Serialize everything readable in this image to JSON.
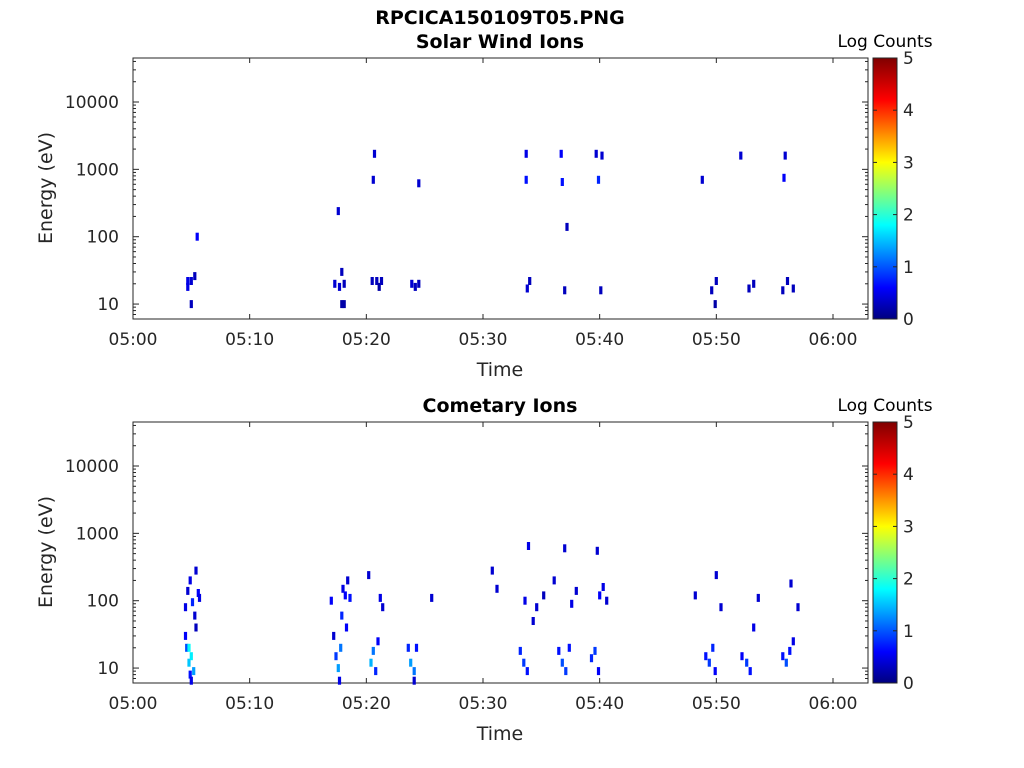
{
  "figure_title": "RPCICA150109T05.PNG",
  "chart_data": [
    {
      "type": "heatmap",
      "title": "Solar Wind Ions",
      "xlabel": "Time",
      "ylabel": "Energy (eV)",
      "xticks": [
        "05:00",
        "05:10",
        "05:20",
        "05:30",
        "05:40",
        "05:50",
        "06:00"
      ],
      "xlim_minutes": [
        0,
        63
      ],
      "yscale": "log",
      "yticks": [
        {
          "value": 10,
          "label": "10"
        },
        {
          "value": 100,
          "label": "100"
        },
        {
          "value": 1000,
          "label": "1000"
        },
        {
          "value": 10000,
          "label": "10000"
        }
      ],
      "ylim": [
        6,
        45000
      ],
      "colorbar": {
        "label": "Log Counts",
        "range": [
          0,
          5
        ],
        "ticks": [
          "0",
          "1",
          "2",
          "3",
          "4",
          "5"
        ],
        "colormap": "jet"
      },
      "cells": [
        {
          "t": 4.7,
          "e": 22,
          "v": 0.5
        },
        {
          "t": 4.7,
          "e": 18,
          "v": 0.5
        },
        {
          "t": 5.0,
          "e": 22,
          "v": 0.4
        },
        {
          "t": 5.0,
          "e": 10,
          "v": 0.3
        },
        {
          "t": 5.3,
          "e": 26,
          "v": 0.3
        },
        {
          "t": 5.5,
          "e": 100,
          "v": 0.6
        },
        {
          "t": 17.3,
          "e": 20,
          "v": 0.4
        },
        {
          "t": 17.6,
          "e": 240,
          "v": 0.4
        },
        {
          "t": 17.7,
          "e": 18,
          "v": 0.4
        },
        {
          "t": 17.9,
          "e": 30,
          "v": 0.3
        },
        {
          "t": 17.9,
          "e": 10,
          "v": 0.2
        },
        {
          "t": 18.1,
          "e": 10,
          "v": 0.2
        },
        {
          "t": 18.1,
          "e": 20,
          "v": 0.3
        },
        {
          "t": 20.5,
          "e": 22,
          "v": 0.3
        },
        {
          "t": 20.6,
          "e": 700,
          "v": 0.4
        },
        {
          "t": 20.7,
          "e": 1700,
          "v": 0.4
        },
        {
          "t": 20.9,
          "e": 22,
          "v": 0.3
        },
        {
          "t": 21.1,
          "e": 18,
          "v": 0.2
        },
        {
          "t": 21.3,
          "e": 22,
          "v": 0.3
        },
        {
          "t": 23.9,
          "e": 20,
          "v": 0.4
        },
        {
          "t": 24.2,
          "e": 18,
          "v": 0.3
        },
        {
          "t": 24.5,
          "e": 20,
          "v": 0.3
        },
        {
          "t": 24.5,
          "e": 620,
          "v": 0.4
        },
        {
          "t": 33.7,
          "e": 1700,
          "v": 0.5
        },
        {
          "t": 33.7,
          "e": 700,
          "v": 0.7
        },
        {
          "t": 33.8,
          "e": 17,
          "v": 0.4
        },
        {
          "t": 34.0,
          "e": 22,
          "v": 0.3
        },
        {
          "t": 36.7,
          "e": 1700,
          "v": 0.6
        },
        {
          "t": 36.8,
          "e": 650,
          "v": 0.7
        },
        {
          "t": 37.0,
          "e": 16,
          "v": 0.3
        },
        {
          "t": 37.2,
          "e": 140,
          "v": 0.3
        },
        {
          "t": 39.7,
          "e": 1700,
          "v": 0.4
        },
        {
          "t": 39.9,
          "e": 700,
          "v": 0.8
        },
        {
          "t": 40.1,
          "e": 16,
          "v": 0.3
        },
        {
          "t": 40.2,
          "e": 1600,
          "v": 0.4
        },
        {
          "t": 48.8,
          "e": 700,
          "v": 0.4
        },
        {
          "t": 49.6,
          "e": 16,
          "v": 0.3
        },
        {
          "t": 49.9,
          "e": 10,
          "v": 0.2
        },
        {
          "t": 50.0,
          "e": 22,
          "v": 0.3
        },
        {
          "t": 52.1,
          "e": 1600,
          "v": 0.4
        },
        {
          "t": 52.8,
          "e": 17,
          "v": 0.3
        },
        {
          "t": 53.2,
          "e": 20,
          "v": 0.3
        },
        {
          "t": 55.7,
          "e": 16,
          "v": 0.3
        },
        {
          "t": 55.8,
          "e": 750,
          "v": 0.6
        },
        {
          "t": 55.9,
          "e": 1600,
          "v": 0.4
        },
        {
          "t": 56.1,
          "e": 22,
          "v": 0.3
        },
        {
          "t": 56.6,
          "e": 17,
          "v": 0.3
        }
      ]
    },
    {
      "type": "heatmap",
      "title": "Cometary Ions",
      "xlabel": "Time",
      "ylabel": "Energy (eV)",
      "xticks": [
        "05:00",
        "05:10",
        "05:20",
        "05:30",
        "05:40",
        "05:50",
        "06:00"
      ],
      "xlim_minutes": [
        0,
        63
      ],
      "yscale": "log",
      "yticks": [
        {
          "value": 10,
          "label": "10"
        },
        {
          "value": 100,
          "label": "100"
        },
        {
          "value": 1000,
          "label": "1000"
        },
        {
          "value": 10000,
          "label": "10000"
        }
      ],
      "ylim": [
        6,
        45000
      ],
      "colorbar": {
        "label": "Log Counts",
        "range": [
          0,
          5
        ],
        "ticks": [
          "0",
          "1",
          "2",
          "3",
          "4",
          "5"
        ],
        "colormap": "jet"
      },
      "cells": [
        {
          "t": 4.5,
          "e": 30,
          "v": 0.6
        },
        {
          "t": 4.6,
          "e": 20,
          "v": 1.0
        },
        {
          "t": 4.8,
          "e": 12,
          "v": 1.6
        },
        {
          "t": 4.8,
          "e": 20,
          "v": 1.9
        },
        {
          "t": 5.0,
          "e": 15,
          "v": 1.8
        },
        {
          "t": 5.2,
          "e": 9,
          "v": 1.4
        },
        {
          "t": 4.9,
          "e": 8,
          "v": 0.7
        },
        {
          "t": 5.0,
          "e": 6.5,
          "v": 0.5
        },
        {
          "t": 4.5,
          "e": 80,
          "v": 0.5
        },
        {
          "t": 4.7,
          "e": 140,
          "v": 0.4
        },
        {
          "t": 4.9,
          "e": 200,
          "v": 0.5
        },
        {
          "t": 5.1,
          "e": 95,
          "v": 0.8
        },
        {
          "t": 5.3,
          "e": 60,
          "v": 0.4
        },
        {
          "t": 5.4,
          "e": 280,
          "v": 0.4
        },
        {
          "t": 5.6,
          "e": 130,
          "v": 0.6
        },
        {
          "t": 5.7,
          "e": 110,
          "v": 0.5
        },
        {
          "t": 5.4,
          "e": 40,
          "v": 0.3
        },
        {
          "t": 17.0,
          "e": 100,
          "v": 0.6
        },
        {
          "t": 17.2,
          "e": 30,
          "v": 0.4
        },
        {
          "t": 17.4,
          "e": 15,
          "v": 0.9
        },
        {
          "t": 17.6,
          "e": 10,
          "v": 1.4
        },
        {
          "t": 17.8,
          "e": 20,
          "v": 1.2
        },
        {
          "t": 17.7,
          "e": 6.5,
          "v": 0.5
        },
        {
          "t": 17.9,
          "e": 60,
          "v": 0.8
        },
        {
          "t": 18.0,
          "e": 150,
          "v": 0.5
        },
        {
          "t": 18.2,
          "e": 120,
          "v": 0.6
        },
        {
          "t": 18.4,
          "e": 200,
          "v": 0.4
        },
        {
          "t": 18.6,
          "e": 110,
          "v": 0.7
        },
        {
          "t": 18.3,
          "e": 40,
          "v": 0.6
        },
        {
          "t": 20.2,
          "e": 240,
          "v": 0.4
        },
        {
          "t": 20.4,
          "e": 12,
          "v": 1.5
        },
        {
          "t": 20.6,
          "e": 18,
          "v": 1.2
        },
        {
          "t": 20.8,
          "e": 9,
          "v": 0.8
        },
        {
          "t": 21.0,
          "e": 25,
          "v": 0.6
        },
        {
          "t": 21.2,
          "e": 110,
          "v": 0.5
        },
        {
          "t": 21.4,
          "e": 80,
          "v": 0.4
        },
        {
          "t": 23.6,
          "e": 20,
          "v": 0.8
        },
        {
          "t": 23.8,
          "e": 12,
          "v": 1.4
        },
        {
          "t": 24.1,
          "e": 9,
          "v": 1.2
        },
        {
          "t": 24.3,
          "e": 20,
          "v": 0.7
        },
        {
          "t": 24.1,
          "e": 6.5,
          "v": 0.4
        },
        {
          "t": 25.6,
          "e": 110,
          "v": 0.4
        },
        {
          "t": 30.8,
          "e": 280,
          "v": 0.4
        },
        {
          "t": 31.2,
          "e": 150,
          "v": 0.4
        },
        {
          "t": 33.2,
          "e": 18,
          "v": 0.8
        },
        {
          "t": 33.5,
          "e": 12,
          "v": 0.9
        },
        {
          "t": 33.8,
          "e": 9,
          "v": 0.7
        },
        {
          "t": 33.6,
          "e": 100,
          "v": 0.5
        },
        {
          "t": 33.9,
          "e": 650,
          "v": 0.5
        },
        {
          "t": 34.3,
          "e": 50,
          "v": 0.4
        },
        {
          "t": 34.6,
          "e": 80,
          "v": 0.4
        },
        {
          "t": 35.2,
          "e": 120,
          "v": 0.3
        },
        {
          "t": 36.1,
          "e": 200,
          "v": 0.4
        },
        {
          "t": 36.5,
          "e": 18,
          "v": 0.7
        },
        {
          "t": 36.8,
          "e": 12,
          "v": 1.0
        },
        {
          "t": 37.0,
          "e": 600,
          "v": 0.4
        },
        {
          "t": 37.1,
          "e": 9,
          "v": 0.9
        },
        {
          "t": 37.4,
          "e": 20,
          "v": 0.7
        },
        {
          "t": 37.6,
          "e": 90,
          "v": 0.5
        },
        {
          "t": 38.0,
          "e": 140,
          "v": 0.4
        },
        {
          "t": 39.3,
          "e": 14,
          "v": 0.8
        },
        {
          "t": 39.6,
          "e": 18,
          "v": 0.9
        },
        {
          "t": 39.9,
          "e": 9,
          "v": 0.6
        },
        {
          "t": 40.0,
          "e": 120,
          "v": 0.6
        },
        {
          "t": 40.3,
          "e": 160,
          "v": 0.5
        },
        {
          "t": 40.6,
          "e": 100,
          "v": 0.4
        },
        {
          "t": 39.8,
          "e": 550,
          "v": 0.4
        },
        {
          "t": 48.2,
          "e": 120,
          "v": 0.4
        },
        {
          "t": 49.1,
          "e": 15,
          "v": 0.7
        },
        {
          "t": 49.4,
          "e": 12,
          "v": 0.9
        },
        {
          "t": 49.7,
          "e": 20,
          "v": 0.8
        },
        {
          "t": 49.9,
          "e": 9,
          "v": 0.6
        },
        {
          "t": 50.0,
          "e": 240,
          "v": 0.4
        },
        {
          "t": 50.4,
          "e": 80,
          "v": 0.4
        },
        {
          "t": 52.2,
          "e": 15,
          "v": 0.6
        },
        {
          "t": 52.6,
          "e": 12,
          "v": 0.9
        },
        {
          "t": 52.9,
          "e": 9,
          "v": 0.7
        },
        {
          "t": 53.2,
          "e": 40,
          "v": 0.5
        },
        {
          "t": 53.6,
          "e": 110,
          "v": 0.4
        },
        {
          "t": 55.7,
          "e": 15,
          "v": 0.7
        },
        {
          "t": 56.0,
          "e": 12,
          "v": 1.0
        },
        {
          "t": 56.3,
          "e": 18,
          "v": 0.7
        },
        {
          "t": 56.6,
          "e": 25,
          "v": 0.5
        },
        {
          "t": 56.4,
          "e": 180,
          "v": 0.4
        },
        {
          "t": 57.0,
          "e": 80,
          "v": 0.4
        }
      ]
    }
  ]
}
